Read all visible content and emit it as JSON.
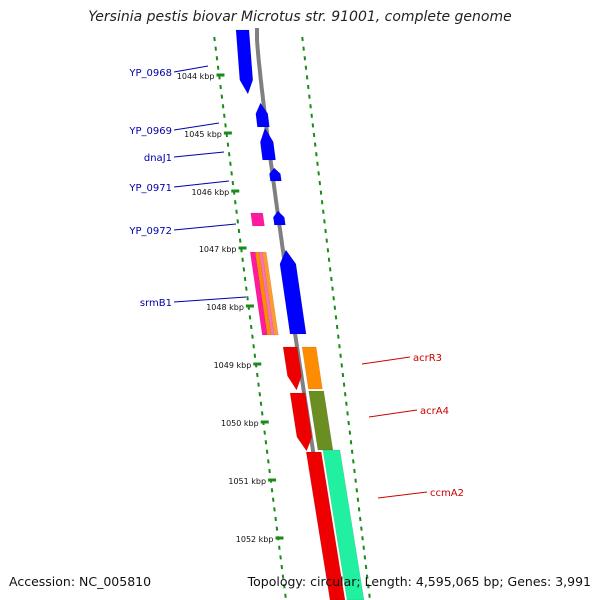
{
  "title": "Yersinia pestis biovar Microtus str. 91001, complete genome",
  "footer": {
    "accession": "Accession: NC_005810",
    "summary": "Topology: circular; Length: 4,595,065 bp; Genes: 3,991"
  },
  "scale_ticks": [
    "1044 kbp",
    "1045 kbp",
    "1046 kbp",
    "1047 kbp",
    "1048 kbp",
    "1049 kbp",
    "1050 kbp",
    "1051 kbp",
    "1052 kbp"
  ],
  "gene_labels_left": [
    "YP_0968",
    "YP_0969",
    "dnaJ1",
    "YP_0971",
    "YP_0972",
    "srmB1"
  ],
  "gene_labels_right": [
    "acrR3",
    "acrA4",
    "ccmA2"
  ],
  "colors": {
    "left_label": "#0000aa",
    "right_label": "#cc0000",
    "dots": "#1a8a1a",
    "backbone": "#808080",
    "blue": "#0000ff",
    "magenta": "#ff1aa0",
    "orange": "#ff8c00",
    "red": "#ee0000",
    "olive": "#6b8e23",
    "teal": "#20f0a0"
  }
}
